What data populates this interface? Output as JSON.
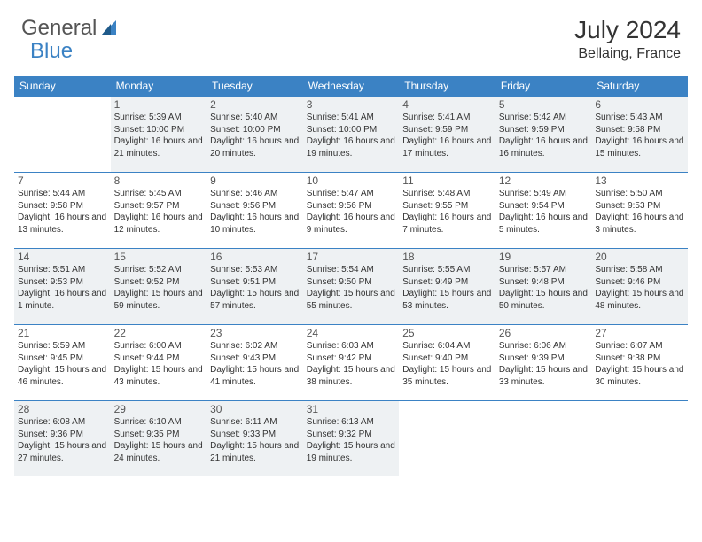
{
  "brand": {
    "part1": "General",
    "part2": "Blue"
  },
  "title": "July 2024",
  "location": "Bellaing, France",
  "colors": {
    "accent": "#3b82c4",
    "shade": "#eef1f3",
    "text": "#333333"
  },
  "weekdays": [
    "Sunday",
    "Monday",
    "Tuesday",
    "Wednesday",
    "Thursday",
    "Friday",
    "Saturday"
  ],
  "weeks": [
    [
      null,
      {
        "n": "1",
        "sr": "5:39 AM",
        "ss": "10:00 PM",
        "dl": "16 hours and 21 minutes."
      },
      {
        "n": "2",
        "sr": "5:40 AM",
        "ss": "10:00 PM",
        "dl": "16 hours and 20 minutes."
      },
      {
        "n": "3",
        "sr": "5:41 AM",
        "ss": "10:00 PM",
        "dl": "16 hours and 19 minutes."
      },
      {
        "n": "4",
        "sr": "5:41 AM",
        "ss": "9:59 PM",
        "dl": "16 hours and 17 minutes."
      },
      {
        "n": "5",
        "sr": "5:42 AM",
        "ss": "9:59 PM",
        "dl": "16 hours and 16 minutes."
      },
      {
        "n": "6",
        "sr": "5:43 AM",
        "ss": "9:58 PM",
        "dl": "16 hours and 15 minutes."
      }
    ],
    [
      {
        "n": "7",
        "sr": "5:44 AM",
        "ss": "9:58 PM",
        "dl": "16 hours and 13 minutes."
      },
      {
        "n": "8",
        "sr": "5:45 AM",
        "ss": "9:57 PM",
        "dl": "16 hours and 12 minutes."
      },
      {
        "n": "9",
        "sr": "5:46 AM",
        "ss": "9:56 PM",
        "dl": "16 hours and 10 minutes."
      },
      {
        "n": "10",
        "sr": "5:47 AM",
        "ss": "9:56 PM",
        "dl": "16 hours and 9 minutes."
      },
      {
        "n": "11",
        "sr": "5:48 AM",
        "ss": "9:55 PM",
        "dl": "16 hours and 7 minutes."
      },
      {
        "n": "12",
        "sr": "5:49 AM",
        "ss": "9:54 PM",
        "dl": "16 hours and 5 minutes."
      },
      {
        "n": "13",
        "sr": "5:50 AM",
        "ss": "9:53 PM",
        "dl": "16 hours and 3 minutes."
      }
    ],
    [
      {
        "n": "14",
        "sr": "5:51 AM",
        "ss": "9:53 PM",
        "dl": "16 hours and 1 minute."
      },
      {
        "n": "15",
        "sr": "5:52 AM",
        "ss": "9:52 PM",
        "dl": "15 hours and 59 minutes."
      },
      {
        "n": "16",
        "sr": "5:53 AM",
        "ss": "9:51 PM",
        "dl": "15 hours and 57 minutes."
      },
      {
        "n": "17",
        "sr": "5:54 AM",
        "ss": "9:50 PM",
        "dl": "15 hours and 55 minutes."
      },
      {
        "n": "18",
        "sr": "5:55 AM",
        "ss": "9:49 PM",
        "dl": "15 hours and 53 minutes."
      },
      {
        "n": "19",
        "sr": "5:57 AM",
        "ss": "9:48 PM",
        "dl": "15 hours and 50 minutes."
      },
      {
        "n": "20",
        "sr": "5:58 AM",
        "ss": "9:46 PM",
        "dl": "15 hours and 48 minutes."
      }
    ],
    [
      {
        "n": "21",
        "sr": "5:59 AM",
        "ss": "9:45 PM",
        "dl": "15 hours and 46 minutes."
      },
      {
        "n": "22",
        "sr": "6:00 AM",
        "ss": "9:44 PM",
        "dl": "15 hours and 43 minutes."
      },
      {
        "n": "23",
        "sr": "6:02 AM",
        "ss": "9:43 PM",
        "dl": "15 hours and 41 minutes."
      },
      {
        "n": "24",
        "sr": "6:03 AM",
        "ss": "9:42 PM",
        "dl": "15 hours and 38 minutes."
      },
      {
        "n": "25",
        "sr": "6:04 AM",
        "ss": "9:40 PM",
        "dl": "15 hours and 35 minutes."
      },
      {
        "n": "26",
        "sr": "6:06 AM",
        "ss": "9:39 PM",
        "dl": "15 hours and 33 minutes."
      },
      {
        "n": "27",
        "sr": "6:07 AM",
        "ss": "9:38 PM",
        "dl": "15 hours and 30 minutes."
      }
    ],
    [
      {
        "n": "28",
        "sr": "6:08 AM",
        "ss": "9:36 PM",
        "dl": "15 hours and 27 minutes."
      },
      {
        "n": "29",
        "sr": "6:10 AM",
        "ss": "9:35 PM",
        "dl": "15 hours and 24 minutes."
      },
      {
        "n": "30",
        "sr": "6:11 AM",
        "ss": "9:33 PM",
        "dl": "15 hours and 21 minutes."
      },
      {
        "n": "31",
        "sr": "6:13 AM",
        "ss": "9:32 PM",
        "dl": "15 hours and 19 minutes."
      },
      null,
      null,
      null
    ]
  ],
  "labels": {
    "sunrise": "Sunrise:",
    "sunset": "Sunset:",
    "daylight": "Daylight:"
  }
}
